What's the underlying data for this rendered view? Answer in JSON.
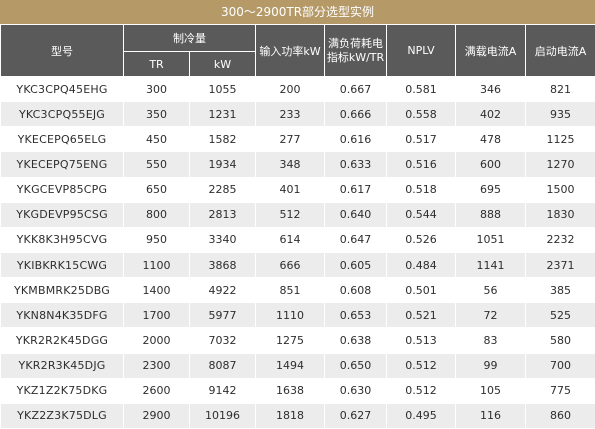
{
  "title": "300～2900TR部分选型实例",
  "headers": {
    "model": "型号",
    "cooling": "制冷量",
    "tr": "TR",
    "kw": "kW",
    "input_power": "输入功率kW",
    "full_load_index": "满负荷耗电指标kW/TR",
    "nplv": "NPLV",
    "full_load_current": "满载电流A",
    "start_current": "启动电流A"
  },
  "rows": [
    {
      "model": "YKC3CPQ45EHG",
      "tr": "300",
      "kw": "1055",
      "input": "200",
      "index": "0.667",
      "nplv": "0.581",
      "fla": "346",
      "start": "821"
    },
    {
      "model": "YKC3CPQ55EJG",
      "tr": "350",
      "kw": "1231",
      "input": "233",
      "index": "0.666",
      "nplv": "0.558",
      "fla": "402",
      "start": "935"
    },
    {
      "model": "YKECEPQ65ELG",
      "tr": "450",
      "kw": "1582",
      "input": "277",
      "index": "0.616",
      "nplv": "0.517",
      "fla": "478",
      "start": "1125"
    },
    {
      "model": "YKECEPQ75ENG",
      "tr": "550",
      "kw": "1934",
      "input": "348",
      "index": "0.633",
      "nplv": "0.516",
      "fla": "600",
      "start": "1270"
    },
    {
      "model": "YKGCEVP85CPG",
      "tr": "650",
      "kw": "2285",
      "input": "401",
      "index": "0.617",
      "nplv": "0.518",
      "fla": "695",
      "start": "1500"
    },
    {
      "model": "YKGDEVP95CSG",
      "tr": "800",
      "kw": "2813",
      "input": "512",
      "index": "0.640",
      "nplv": "0.544",
      "fla": "888",
      "start": "1830"
    },
    {
      "model": "YKK8K3H95CVG",
      "tr": "950",
      "kw": "3340",
      "input": "614",
      "index": "0.647",
      "nplv": "0.526",
      "fla": "1051",
      "start": "2232"
    },
    {
      "model": "YKIBKRK15CWG",
      "tr": "1100",
      "kw": "3868",
      "input": "666",
      "index": "0.605",
      "nplv": "0.484",
      "fla": "1141",
      "start": "2371"
    },
    {
      "model": "YKMBMRK25DBG",
      "tr": "1400",
      "kw": "4922",
      "input": "851",
      "index": "0.608",
      "nplv": "0.501",
      "fla": "56",
      "start": "385"
    },
    {
      "model": "YKN8N4K35DFG",
      "tr": "1700",
      "kw": "5977",
      "input": "1110",
      "index": "0.653",
      "nplv": "0.521",
      "fla": "72",
      "start": "525"
    },
    {
      "model": "YKR2R2K45DGG",
      "tr": "2000",
      "kw": "7032",
      "input": "1275",
      "index": "0.638",
      "nplv": "0.513",
      "fla": "83",
      "start": "580"
    },
    {
      "model": "YKR2R3K45DJG",
      "tr": "2300",
      "kw": "8087",
      "input": "1494",
      "index": "0.650",
      "nplv": "0.512",
      "fla": "99",
      "start": "700"
    },
    {
      "model": "YKZ1Z2K75DKG",
      "tr": "2600",
      "kw": "9142",
      "input": "1638",
      "index": "0.630",
      "nplv": "0.512",
      "fla": "105",
      "start": "775"
    },
    {
      "model": "YKZ2Z3K75DLG",
      "tr": "2900",
      "kw": "10196",
      "input": "1818",
      "index": "0.627",
      "nplv": "0.495",
      "fla": "116",
      "start": "860"
    }
  ]
}
